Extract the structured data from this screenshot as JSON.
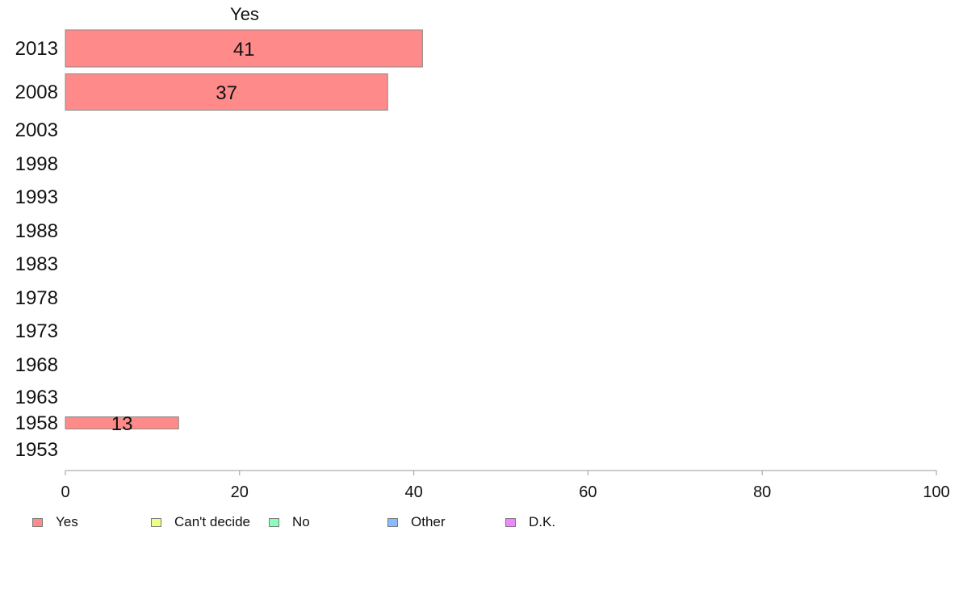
{
  "chart_data": {
    "type": "bar",
    "orientation": "horizontal",
    "title": "",
    "column_header": "Yes",
    "categories": [
      "2013",
      "2008",
      "2003",
      "1998",
      "1993",
      "1988",
      "1983",
      "1978",
      "1973",
      "1968",
      "1963",
      "1958",
      "1953"
    ],
    "series": [
      {
        "name": "Yes",
        "color": "#ff8a8a",
        "values": [
          41,
          37,
          null,
          null,
          null,
          null,
          null,
          null,
          null,
          null,
          null,
          13,
          null
        ],
        "data_labels": [
          "41",
          "37",
          "",
          "",
          "",
          "",
          "",
          "",
          "",
          "",
          "",
          "13",
          ""
        ]
      }
    ],
    "xlim": [
      0,
      100
    ],
    "xticks": [
      "0",
      "20",
      "40",
      "60",
      "80",
      "100"
    ],
    "xlabel": "",
    "ylabel": "",
    "grid": false,
    "legend": {
      "placement": "bottom",
      "items": [
        {
          "label": "Yes",
          "color": "#ff8a8a"
        },
        {
          "label": "Can't decide",
          "color": "#eeff88"
        },
        {
          "label": "No",
          "color": "#88ffbb"
        },
        {
          "label": "Other",
          "color": "#88bbff"
        },
        {
          "label": "D.K.",
          "color": "#ee88ff"
        }
      ]
    }
  }
}
